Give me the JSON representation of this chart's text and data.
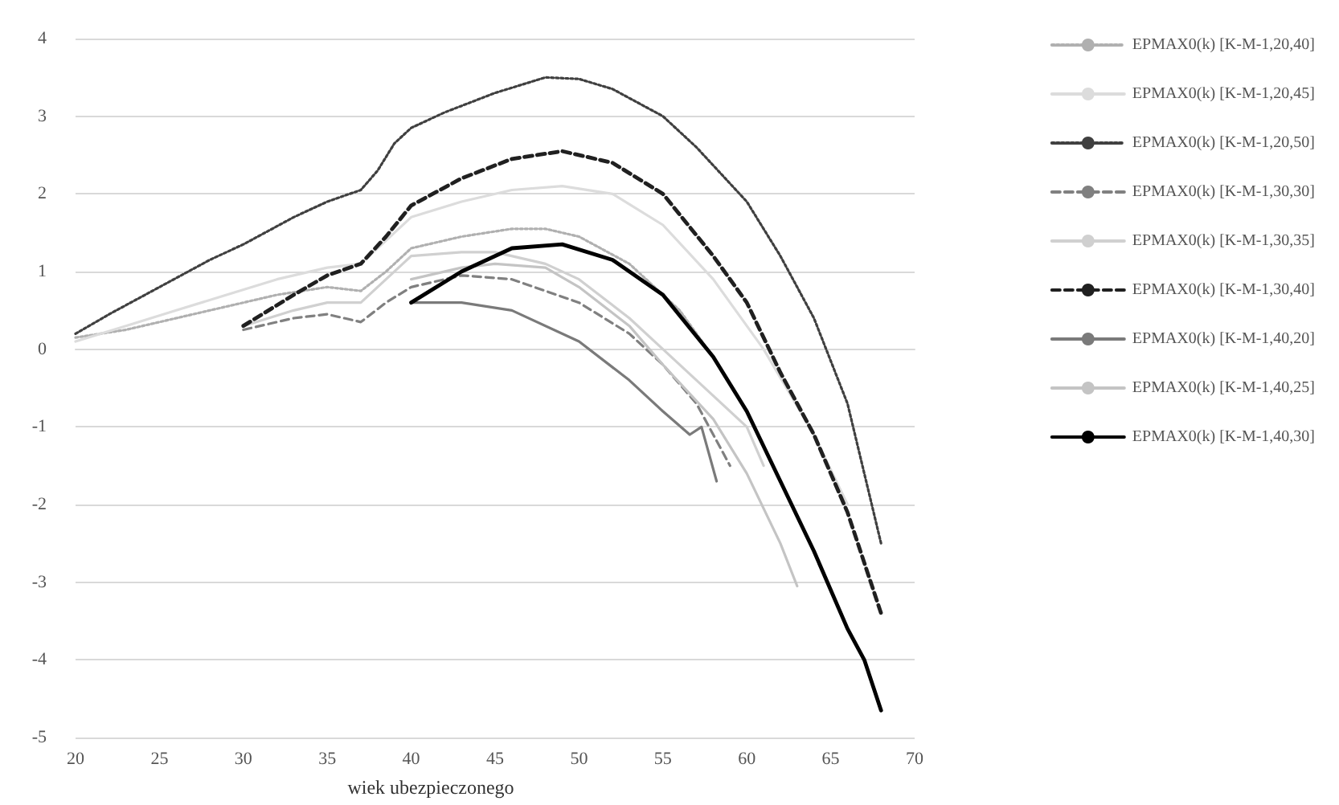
{
  "chart_data": {
    "type": "line",
    "xlabel": "wiek ubezpieczonego",
    "xlim": [
      20,
      70
    ],
    "xticks": [
      20,
      25,
      30,
      35,
      40,
      45,
      50,
      55,
      60,
      65,
      70
    ],
    "ylim": [
      -5,
      4
    ],
    "yticks": [
      -5,
      -4,
      -3,
      -2,
      -1,
      0,
      1,
      2,
      3,
      4
    ],
    "grid": "y",
    "legend": "right",
    "marker": "none",
    "series": [
      {
        "name": "EPMAX0(k) [K-M-1,20,40]",
        "color": "#b0b0b0",
        "line_style": "dotted",
        "x": [
          20,
          23,
          26,
          29,
          32,
          35,
          37,
          38.5,
          40,
          43,
          46,
          48,
          50,
          53,
          56,
          58,
          60,
          62,
          64
        ],
        "values": [
          0.15,
          0.25,
          0.4,
          0.55,
          0.7,
          0.8,
          0.75,
          1.0,
          1.3,
          1.45,
          1.55,
          1.55,
          1.45,
          1.1,
          0.5,
          -0.1,
          -0.8,
          -1.7,
          -2.6
        ]
      },
      {
        "name": "EPMAX0(k) [K-M-1,20,45]",
        "color": "#dcdcdc",
        "line_style": "solid",
        "x": [
          20,
          23,
          26,
          29,
          32,
          35,
          37,
          38.5,
          40,
          43,
          46,
          49,
          52,
          55,
          58,
          61,
          64,
          66
        ],
        "values": [
          0.1,
          0.3,
          0.5,
          0.7,
          0.9,
          1.05,
          1.1,
          1.4,
          1.7,
          1.9,
          2.05,
          2.1,
          2.0,
          1.6,
          0.9,
          0.0,
          -1.1,
          -2.0
        ]
      },
      {
        "name": "EPMAX0(k) [K-M-1,20,50]",
        "color": "#404040",
        "line_style": "dotted",
        "x": [
          20,
          22,
          25,
          28,
          30,
          33,
          35,
          37,
          38,
          39,
          40,
          42,
          45,
          48,
          50,
          52,
          55,
          57,
          60,
          62,
          64,
          66,
          68
        ],
        "values": [
          0.2,
          0.45,
          0.8,
          1.15,
          1.35,
          1.7,
          1.9,
          2.05,
          2.3,
          2.65,
          2.85,
          3.05,
          3.3,
          3.5,
          3.48,
          3.35,
          3.0,
          2.6,
          1.9,
          1.2,
          0.4,
          -0.7,
          -2.5
        ]
      },
      {
        "name": "EPMAX0(k) [K-M-1,30,30]",
        "color": "#808080",
        "line_style": "dashed",
        "x": [
          30,
          33,
          35,
          37,
          38.5,
          40,
          43,
          46,
          50,
          53,
          55,
          57,
          59
        ],
        "values": [
          0.25,
          0.4,
          0.45,
          0.35,
          0.6,
          0.8,
          0.95,
          0.9,
          0.6,
          0.2,
          -0.2,
          -0.7,
          -1.5
        ]
      },
      {
        "name": "EPMAX0(k) [K-M-1,30,35]",
        "color": "#d0d0d0",
        "line_style": "solid",
        "x": [
          30,
          33,
          35,
          37,
          38.5,
          40,
          43,
          45,
          48,
          50,
          53,
          55,
          58,
          60,
          61
        ],
        "values": [
          0.3,
          0.5,
          0.6,
          0.6,
          0.9,
          1.2,
          1.25,
          1.25,
          1.1,
          0.9,
          0.4,
          0.0,
          -0.6,
          -1.0,
          -1.5
        ]
      },
      {
        "name": "EPMAX0(k) [K-M-1,30,40]",
        "color": "#202020",
        "line_style": "dashed",
        "x": [
          30,
          33,
          35,
          37,
          38.5,
          40,
          43,
          46,
          49,
          52,
          55,
          58,
          60,
          62,
          64,
          66,
          68
        ],
        "values": [
          0.3,
          0.7,
          0.95,
          1.1,
          1.45,
          1.85,
          2.2,
          2.45,
          2.55,
          2.4,
          2.0,
          1.2,
          0.6,
          -0.3,
          -1.1,
          -2.1,
          -3.4
        ]
      },
      {
        "name": "EPMAX0(k) [K-M-1,40,20]",
        "color": "#7a7a7a",
        "line_style": "solid",
        "x": [
          40,
          43,
          46,
          50,
          53,
          55,
          56.6,
          57.3,
          58.2
        ],
        "values": [
          0.6,
          0.6,
          0.5,
          0.1,
          -0.4,
          -0.8,
          -1.1,
          -1.0,
          -1.7
        ]
      },
      {
        "name": "EPMAX0(k) [K-M-1,40,25]",
        "color": "#c4c4c4",
        "line_style": "solid",
        "x": [
          40,
          43,
          45,
          48,
          50,
          53,
          55,
          58,
          60,
          62,
          63
        ],
        "values": [
          0.9,
          1.05,
          1.1,
          1.05,
          0.8,
          0.3,
          -0.2,
          -0.9,
          -1.6,
          -2.5,
          -3.05
        ]
      },
      {
        "name": "EPMAX0(k) [K-M-1,40,30]",
        "color": "#000000",
        "line_style": "solid",
        "x": [
          40,
          43,
          46,
          49,
          52,
          55,
          58,
          60,
          62,
          64,
          66,
          67,
          68
        ],
        "values": [
          0.6,
          1.0,
          1.3,
          1.35,
          1.15,
          0.7,
          -0.1,
          -0.8,
          -1.7,
          -2.6,
          -3.6,
          -4.0,
          -4.65
        ]
      }
    ]
  }
}
